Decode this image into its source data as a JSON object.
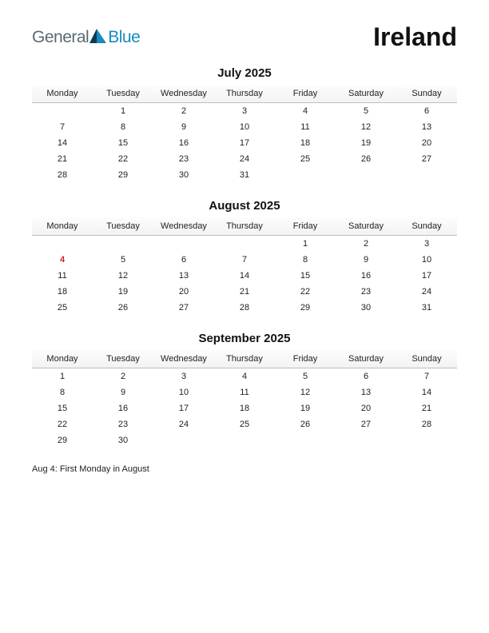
{
  "logo": {
    "general": "General",
    "blue": "Blue",
    "mark_color_dark": "#0d3a56",
    "mark_color_light": "#1a8bbf"
  },
  "page_title": "Ireland",
  "weekdays": [
    "Monday",
    "Tuesday",
    "Wednesday",
    "Thursday",
    "Friday",
    "Saturday",
    "Sunday"
  ],
  "months": [
    {
      "title": "July 2025",
      "rows": [
        [
          "",
          "1",
          "2",
          "3",
          "4",
          "5",
          "6"
        ],
        [
          "7",
          "8",
          "9",
          "10",
          "11",
          "12",
          "13"
        ],
        [
          "14",
          "15",
          "16",
          "17",
          "18",
          "19",
          "20"
        ],
        [
          "21",
          "22",
          "23",
          "24",
          "25",
          "26",
          "27"
        ],
        [
          "28",
          "29",
          "30",
          "31",
          "",
          "",
          ""
        ]
      ],
      "holidays": []
    },
    {
      "title": "August 2025",
      "rows": [
        [
          "",
          "",
          "",
          "",
          "1",
          "2",
          "3"
        ],
        [
          "4",
          "5",
          "6",
          "7",
          "8",
          "9",
          "10"
        ],
        [
          "11",
          "12",
          "13",
          "14",
          "15",
          "16",
          "17"
        ],
        [
          "18",
          "19",
          "20",
          "21",
          "22",
          "23",
          "24"
        ],
        [
          "25",
          "26",
          "27",
          "28",
          "29",
          "30",
          "31"
        ]
      ],
      "holidays": [
        [
          1,
          0
        ]
      ]
    },
    {
      "title": "September 2025",
      "rows": [
        [
          "1",
          "2",
          "3",
          "4",
          "5",
          "6",
          "7"
        ],
        [
          "8",
          "9",
          "10",
          "11",
          "12",
          "13",
          "14"
        ],
        [
          "15",
          "16",
          "17",
          "18",
          "19",
          "20",
          "21"
        ],
        [
          "22",
          "23",
          "24",
          "25",
          "26",
          "27",
          "28"
        ],
        [
          "29",
          "30",
          "",
          "",
          "",
          "",
          ""
        ]
      ],
      "holidays": []
    }
  ],
  "notes": "Aug 4: First Monday in August",
  "colors": {
    "text": "#222222",
    "holiday": "#d02020",
    "header_bg": "#f4f4f4",
    "header_border": "#bfbfbf",
    "background": "#ffffff"
  },
  "fonts": {
    "page_title_size": 32,
    "month_title_size": 15,
    "weekday_size": 11,
    "cell_size": 11,
    "notes_size": 11
  }
}
